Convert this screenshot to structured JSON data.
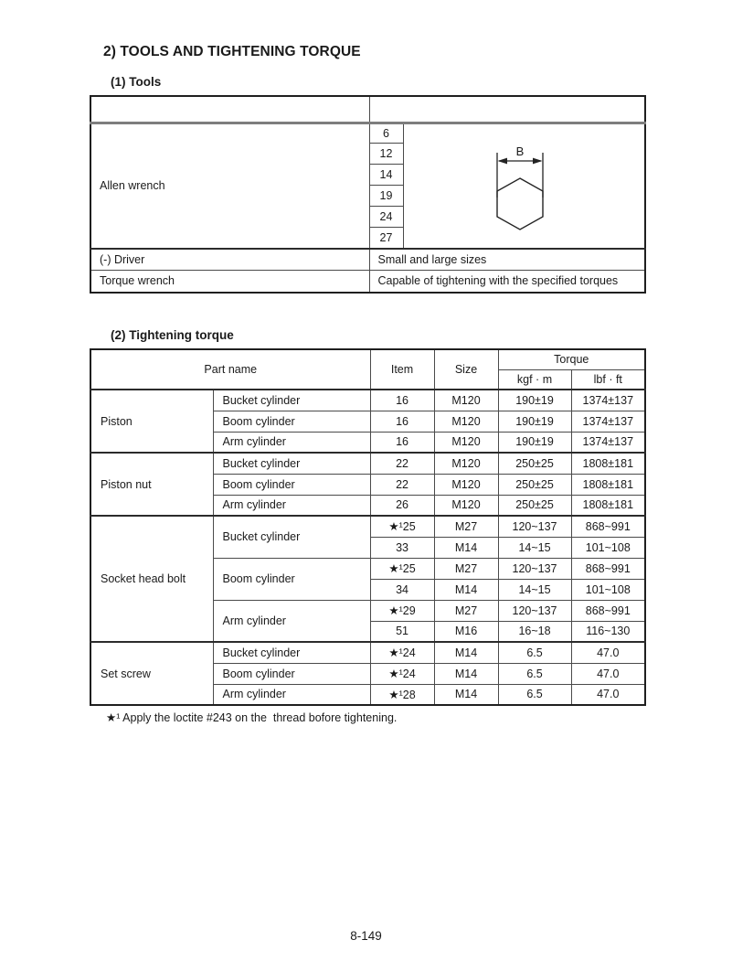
{
  "page": {
    "section_title": "2) TOOLS AND TIGHTENING TORQUE",
    "tools_title": "(1) Tools",
    "torque_title": "(2) Tightening torque",
    "footnote": "★¹ Apply the loctite #243 on the  thread bofore tightening.",
    "page_number": "8-149"
  },
  "tools_table": {
    "allen": {
      "name": "Allen wrench",
      "sizes": [
        "6",
        "12",
        "14",
        "19",
        "24",
        "27"
      ],
      "diagram_label": "B",
      "diagram_icon": "hexagon-across-flats-icon"
    },
    "driver": {
      "name": "(-) Driver",
      "desc": "Small and large sizes"
    },
    "torque_wrench": {
      "name": "Torque wrench",
      "desc": "Capable of tightening with the specified torques"
    }
  },
  "torque_table": {
    "headers": {
      "part_name": "Part name",
      "item": "Item",
      "size": "Size",
      "torque": "Torque",
      "kgf": "kgf · m",
      "lbf": "lbf · ft"
    },
    "groups": [
      {
        "name": "Piston",
        "subs": [
          {
            "name": "Bucket cylinder",
            "rows": [
              {
                "item": "16",
                "size": "M120",
                "kgf": "190±19",
                "lbf": "1374±137"
              }
            ]
          },
          {
            "name": "Boom cylinder",
            "rows": [
              {
                "item": "16",
                "size": "M120",
                "kgf": "190±19",
                "lbf": "1374±137"
              }
            ]
          },
          {
            "name": "Arm cylinder",
            "rows": [
              {
                "item": "16",
                "size": "M120",
                "kgf": "190±19",
                "lbf": "1374±137"
              }
            ]
          }
        ]
      },
      {
        "name": "Piston nut",
        "subs": [
          {
            "name": "Bucket cylinder",
            "rows": [
              {
                "item": "22",
                "size": "M120",
                "kgf": "250±25",
                "lbf": "1808±181"
              }
            ]
          },
          {
            "name": "Boom cylinder",
            "rows": [
              {
                "item": "22",
                "size": "M120",
                "kgf": "250±25",
                "lbf": "1808±181"
              }
            ]
          },
          {
            "name": "Arm cylinder",
            "rows": [
              {
                "item": "26",
                "size": "M120",
                "kgf": "250±25",
                "lbf": "1808±181"
              }
            ]
          }
        ]
      },
      {
        "name": "Socket head bolt",
        "subs": [
          {
            "name": "Bucket cylinder",
            "rows": [
              {
                "item": "★¹25",
                "size": "M27",
                "kgf": "120~137",
                "lbf": "868~991"
              },
              {
                "item": "33",
                "size": "M14",
                "kgf": "14~15",
                "lbf": "101~108"
              }
            ]
          },
          {
            "name": "Boom cylinder",
            "rows": [
              {
                "item": "★¹25",
                "size": "M27",
                "kgf": "120~137",
                "lbf": "868~991"
              },
              {
                "item": "34",
                "size": "M14",
                "kgf": "14~15",
                "lbf": "101~108"
              }
            ]
          },
          {
            "name": "Arm cylinder",
            "rows": [
              {
                "item": "★¹29",
                "size": "M27",
                "kgf": "120~137",
                "lbf": "868~991"
              },
              {
                "item": "51",
                "size": "M16",
                "kgf": "16~18",
                "lbf": "116~130"
              }
            ]
          }
        ]
      },
      {
        "name": "Set screw",
        "subs": [
          {
            "name": "Bucket cylinder",
            "rows": [
              {
                "item": "★¹24",
                "size": "M14",
                "kgf": "6.5",
                "lbf": "47.0"
              }
            ]
          },
          {
            "name": "Boom cylinder",
            "rows": [
              {
                "item": "★¹24",
                "size": "M14",
                "kgf": "6.5",
                "lbf": "47.0"
              }
            ]
          },
          {
            "name": "Arm cylinder",
            "rows": [
              {
                "item": "★¹28",
                "size": "M14",
                "kgf": "6.5",
                "lbf": "47.0"
              }
            ]
          }
        ]
      }
    ]
  }
}
